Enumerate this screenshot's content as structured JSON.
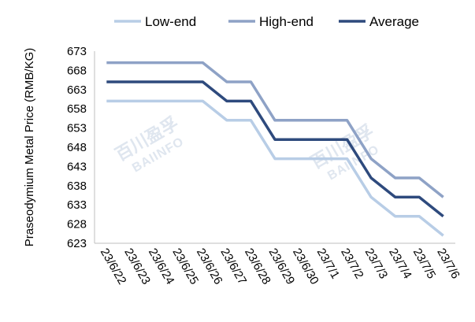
{
  "chart_data": {
    "type": "line",
    "categories": [
      "23/6/22",
      "23/6/23",
      "23/6/24",
      "23/6/25",
      "23/6/26",
      "23/6/27",
      "23/6/28",
      "23/6/29",
      "23/6/30",
      "23/7/1",
      "23/7/2",
      "23/7/3",
      "23/7/4",
      "23/7/5",
      "23/7/6"
    ],
    "series": [
      {
        "name": "Low-end",
        "color": "#b8cde6",
        "values": [
          660,
          660,
          660,
          660,
          660,
          655,
          655,
          645,
          645,
          645,
          645,
          635,
          630,
          630,
          625
        ]
      },
      {
        "name": "High-end",
        "color": "#8ea2c6",
        "values": [
          670,
          670,
          670,
          670,
          670,
          665,
          665,
          655,
          655,
          655,
          655,
          645,
          640,
          640,
          635
        ]
      },
      {
        "name": "Average",
        "color": "#2e4a7d",
        "values": [
          665,
          665,
          665,
          665,
          665,
          660,
          660,
          650,
          650,
          650,
          650,
          640,
          635,
          635,
          630
        ]
      }
    ],
    "ylabel": "Praseodymium Metal Price (RMB/KG)",
    "xlabel": "",
    "ylim": [
      623,
      673
    ],
    "yticks": [
      673,
      668,
      663,
      658,
      653,
      648,
      643,
      638,
      633,
      628,
      623
    ],
    "grid": false,
    "legend": "top-center"
  },
  "watermark": {
    "cn": "百川盈孚",
    "en": "BAIINFO"
  }
}
